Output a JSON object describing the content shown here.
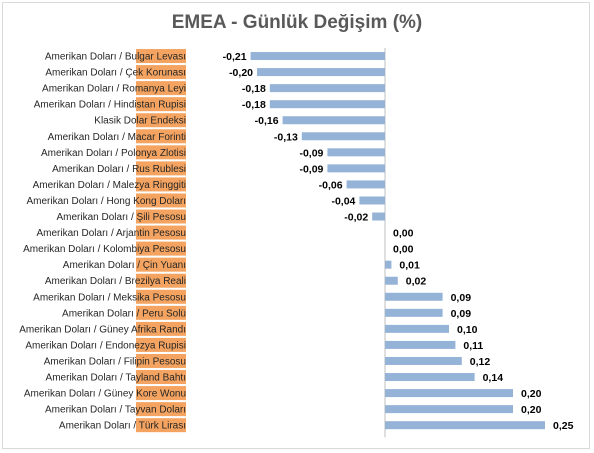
{
  "chart_data": {
    "type": "bar",
    "orientation": "horizontal",
    "title": "EMEA - Günlük Değişim (%)",
    "xlabel": "",
    "ylabel": "",
    "xlim": [
      -0.25,
      0.25
    ],
    "grid": false,
    "legend": "none",
    "colors": {
      "bar": "#95b3d7",
      "label_highlight": "#f4a460",
      "axis": "#bfbfbf"
    },
    "categories": [
      "Amerikan Doları / Bulgar Levası",
      "Amerikan Doları / Çek Korunası",
      "Amerikan Doları / Romanya Leyi",
      "Amerikan Doları / Hindistan Rupisi",
      "Klasik Dolar Endeksi",
      "Amerikan Doları / Macar Forinti",
      "Amerikan Doları / Polonya Zlotisi",
      "Amerikan Doları / Rus Rublesi",
      "Amerikan Doları / Malezya Ringgiti",
      "Amerikan Doları / Hong Kong Doları",
      "Amerikan Doları / Şili Pesosu",
      "Amerikan Doları / Arjantin Pesosu",
      "Amerikan Doları / Kolombiya Pesosu",
      "Amerikan Doları / Çin Yuanı",
      "Amerikan Doları / Brezilya Reali",
      "Amerikan Doları / Meksika Pesosu",
      "Amerikan Doları / Peru Solü",
      "Amerikan Doları / Güney Afrika Randı",
      "Amerikan Doları / Endonezya Rupisi",
      "Amerikan Doları / Filipin Pesosu",
      "Amerikan Doları / Tayland Bahtı",
      "Amerikan Doları / Güney Kore Wonu",
      "Amerikan Doları / Tayvan Doları",
      "Amerikan Doları / Türk Lirası"
    ],
    "values": [
      -0.21,
      -0.2,
      -0.18,
      -0.18,
      -0.16,
      -0.13,
      -0.09,
      -0.09,
      -0.06,
      -0.04,
      -0.02,
      0.0,
      0.0,
      0.01,
      0.02,
      0.09,
      0.09,
      0.1,
      0.11,
      0.12,
      0.14,
      0.2,
      0.2,
      0.25
    ],
    "value_labels": [
      "-0,21",
      "-0,20",
      "-0,18",
      "-0,18",
      "-0,16",
      "-0,13",
      "-0,09",
      "-0,09",
      "-0,06",
      "-0,04",
      "-0,02",
      "0,00",
      "0,00",
      "0,01",
      "0,02",
      "0,09",
      "0,09",
      "0,10",
      "0,11",
      "0,12",
      "0,14",
      "0,20",
      "0,20",
      "0,25"
    ]
  }
}
